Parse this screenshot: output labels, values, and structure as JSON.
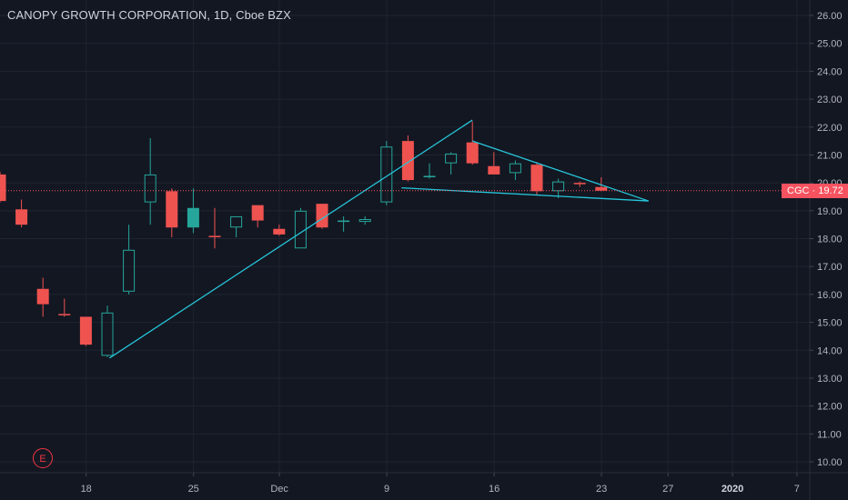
{
  "header": {
    "title": "CANOPY GROWTH CORPORATION, 1D, Cboe BZX"
  },
  "price_tag": {
    "label": "CGC · 19.72"
  },
  "earnings_badge": {
    "label": "E"
  },
  "colors": {
    "background": "#131722",
    "up": "#26a69a",
    "down": "#ef5350",
    "hollow": "#26a69a",
    "pattern_line": "#26c6da",
    "price_line": "#f7525f",
    "grid": "#1f2430",
    "axis_text": "#b2b5be"
  },
  "chart_data": {
    "type": "candlestick",
    "title": "CANOPY GROWTH CORPORATION, 1D, Cboe BZX",
    "symbol": "CGC",
    "last_price": 19.72,
    "ylim": [
      9.7,
      26.5
    ],
    "y_ticks": [
      "10.00",
      "11.00",
      "12.00",
      "13.00",
      "14.00",
      "15.00",
      "16.00",
      "17.00",
      "18.00",
      "19.00",
      "20.00",
      "21.00",
      "22.00",
      "23.00",
      "24.00",
      "25.00",
      "26.00"
    ],
    "x_ticks": [
      {
        "label": "18",
        "index": 4
      },
      {
        "label": "25",
        "index": 9
      },
      {
        "label": "Dec",
        "index": 13
      },
      {
        "label": "9",
        "index": 18
      },
      {
        "label": "16",
        "index": 23
      },
      {
        "label": "23",
        "index": 28
      },
      {
        "label": "27",
        "index": 31.1
      },
      {
        "label": "2020",
        "index": 34.1,
        "bold": true
      },
      {
        "label": "7",
        "index": 37.1
      }
    ],
    "candles": [
      {
        "i": 0,
        "o": 20.3,
        "h": 20.4,
        "l": 19.3,
        "c": 19.35,
        "dir": "down"
      },
      {
        "i": 1,
        "o": 19.05,
        "h": 19.4,
        "l": 18.4,
        "c": 18.5,
        "dir": "down"
      },
      {
        "i": 2,
        "o": 16.2,
        "h": 16.6,
        "l": 15.2,
        "c": 15.65,
        "dir": "down"
      },
      {
        "i": 3,
        "o": 15.3,
        "h": 15.85,
        "l": 15.2,
        "c": 15.25,
        "dir": "down"
      },
      {
        "i": 4,
        "o": 15.2,
        "h": 15.2,
        "l": 14.15,
        "c": 14.2,
        "dir": "down"
      },
      {
        "i": 5,
        "o": 13.8,
        "h": 15.6,
        "l": 13.75,
        "c": 15.35,
        "dir": "hollow"
      },
      {
        "i": 6,
        "o": 16.1,
        "h": 18.5,
        "l": 16.0,
        "c": 17.6,
        "dir": "hollow"
      },
      {
        "i": 7,
        "o": 19.3,
        "h": 21.6,
        "l": 18.5,
        "c": 20.3,
        "dir": "hollow"
      },
      {
        "i": 8,
        "o": 19.7,
        "h": 19.8,
        "l": 18.05,
        "c": 18.4,
        "dir": "down"
      },
      {
        "i": 9,
        "o": 18.4,
        "h": 19.8,
        "l": 18.2,
        "c": 19.1,
        "dir": "up"
      },
      {
        "i": 10,
        "o": 18.1,
        "h": 19.1,
        "l": 17.65,
        "c": 18.05,
        "dir": "down"
      },
      {
        "i": 11,
        "o": 18.4,
        "h": 18.8,
        "l": 18.05,
        "c": 18.8,
        "dir": "hollow"
      },
      {
        "i": 12,
        "o": 19.2,
        "h": 19.2,
        "l": 18.4,
        "c": 18.65,
        "dir": "down"
      },
      {
        "i": 13,
        "o": 18.35,
        "h": 18.5,
        "l": 18.1,
        "c": 18.15,
        "dir": "down"
      },
      {
        "i": 14,
        "o": 17.65,
        "h": 19.1,
        "l": 17.65,
        "c": 19.0,
        "dir": "hollow"
      },
      {
        "i": 15,
        "o": 19.25,
        "h": 19.25,
        "l": 18.35,
        "c": 18.4,
        "dir": "down"
      },
      {
        "i": 16,
        "o": 18.6,
        "h": 18.8,
        "l": 18.25,
        "c": 18.65,
        "dir": "hollow"
      },
      {
        "i": 17,
        "o": 18.6,
        "h": 18.8,
        "l": 18.5,
        "c": 18.7,
        "dir": "hollow"
      },
      {
        "i": 18,
        "o": 19.3,
        "h": 21.5,
        "l": 19.2,
        "c": 21.3,
        "dir": "hollow"
      },
      {
        "i": 19,
        "o": 21.5,
        "h": 21.7,
        "l": 20.05,
        "c": 20.1,
        "dir": "down"
      },
      {
        "i": 20,
        "o": 20.2,
        "h": 20.7,
        "l": 20.15,
        "c": 20.25,
        "dir": "hollow"
      },
      {
        "i": 21,
        "o": 20.7,
        "h": 21.1,
        "l": 20.3,
        "c": 21.05,
        "dir": "hollow"
      },
      {
        "i": 22,
        "o": 21.45,
        "h": 22.2,
        "l": 20.65,
        "c": 20.7,
        "dir": "down"
      },
      {
        "i": 23,
        "o": 20.6,
        "h": 21.1,
        "l": 20.3,
        "c": 20.3,
        "dir": "down"
      },
      {
        "i": 24,
        "o": 20.35,
        "h": 20.8,
        "l": 20.1,
        "c": 20.7,
        "dir": "hollow"
      },
      {
        "i": 25,
        "o": 20.65,
        "h": 20.75,
        "l": 19.55,
        "c": 19.7,
        "dir": "down"
      },
      {
        "i": 26,
        "o": 19.7,
        "h": 20.15,
        "l": 19.45,
        "c": 20.05,
        "dir": "hollow"
      },
      {
        "i": 27,
        "o": 20.0,
        "h": 20.05,
        "l": 19.85,
        "c": 19.95,
        "dir": "down"
      },
      {
        "i": 28,
        "o": 19.85,
        "h": 20.2,
        "l": 19.7,
        "c": 19.72,
        "dir": "down"
      }
    ],
    "pattern_lines": [
      {
        "from": {
          "i": 5.1,
          "v": 13.72
        },
        "to": {
          "i": 22.0,
          "v": 22.25
        }
      },
      {
        "from": {
          "i": 18.7,
          "v": 19.82
        },
        "to": {
          "i": 30.2,
          "v": 19.35
        }
      },
      {
        "from": {
          "i": 22.0,
          "v": 21.5
        },
        "to": {
          "i": 30.2,
          "v": 19.35
        }
      }
    ]
  }
}
